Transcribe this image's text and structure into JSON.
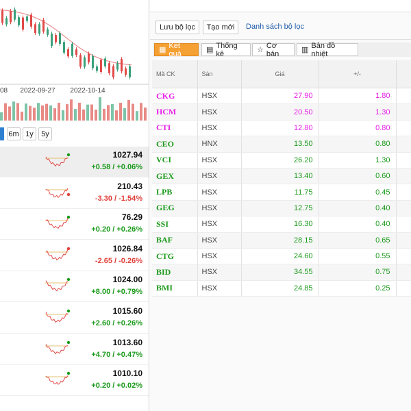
{
  "left_panel": {
    "chart_x_labels": [
      "08",
      "2022-09-27",
      "2022-10-14"
    ],
    "range_buttons": [
      "6m",
      "1y",
      "5y"
    ],
    "indices": [
      {
        "value": "1027.94",
        "change": "+0.58 / +0.06%",
        "color": "#1a9a1a"
      },
      {
        "value": "210.43",
        "change": "-3.30 / -1.54%",
        "color": "#e0403a"
      },
      {
        "value": "76.29",
        "change": "+0.20 / +0.26%",
        "color": "#1a9a1a"
      },
      {
        "value": "1026.84",
        "change": "-2.65 / -0.26%",
        "color": "#e0403a"
      },
      {
        "value": "1024.00",
        "change": "+8.00 / +0.79%",
        "color": "#1a9a1a"
      },
      {
        "value": "1015.60",
        "change": "+2.60 / +0.26%",
        "color": "#1a9a1a"
      },
      {
        "value": "1013.60",
        "change": "+4.70 / +0.47%",
        "color": "#1a9a1a"
      },
      {
        "value": "1010.10",
        "change": "+0.20 / +0.02%",
        "color": "#1a9a1a"
      }
    ]
  },
  "toolbar": {
    "buttons": [
      "Lưu bộ lọc",
      "Tạo mới"
    ],
    "link": "Danh sách bộ lọc"
  },
  "tabs": [
    "Kết quả",
    "Thống kê",
    "Cơ bản",
    "Bản đồ nhiệt"
  ],
  "table": {
    "columns": [
      "Mã CK",
      "Sàn",
      "Giá",
      "+/-"
    ],
    "rows": [
      {
        "cells": [
          "CKG",
          "HSX",
          "27.90",
          "1.80"
        ],
        "color": "#e61ee6"
      },
      {
        "cells": [
          "HCM",
          "HSX",
          "20.50",
          "1.30"
        ],
        "color": "#e61ee6"
      },
      {
        "cells": [
          "CTI",
          "HSX",
          "12.80",
          "0.80"
        ],
        "color": "#e61ee6"
      },
      {
        "cells": [
          "CEO",
          "HNX",
          "13.50",
          "0.80"
        ],
        "color": "#1a9a1a"
      },
      {
        "cells": [
          "VCI",
          "HSX",
          "26.20",
          "1.30"
        ],
        "color": "#1a9a1a"
      },
      {
        "cells": [
          "GEX",
          "HSX",
          "13.40",
          "0.60"
        ],
        "color": "#1a9a1a"
      },
      {
        "cells": [
          "LPB",
          "HSX",
          "11.75",
          "0.45"
        ],
        "color": "#1a9a1a"
      },
      {
        "cells": [
          "GEG",
          "HSX",
          "12.75",
          "0.40"
        ],
        "color": "#1a9a1a"
      },
      {
        "cells": [
          "SSI",
          "HSX",
          "16.30",
          "0.40"
        ],
        "color": "#1a9a1a"
      },
      {
        "cells": [
          "BAF",
          "HSX",
          "28.15",
          "0.65"
        ],
        "color": "#1a9a1a"
      },
      {
        "cells": [
          "CTG",
          "HSX",
          "24.60",
          "0.55"
        ],
        "color": "#1a9a1a"
      },
      {
        "cells": [
          "BID",
          "HSX",
          "34.55",
          "0.75"
        ],
        "color": "#1a9a1a"
      },
      {
        "cells": [
          "BMI",
          "HSX",
          "24.85",
          "0.25"
        ],
        "color": "#1a9a1a"
      }
    ]
  }
}
